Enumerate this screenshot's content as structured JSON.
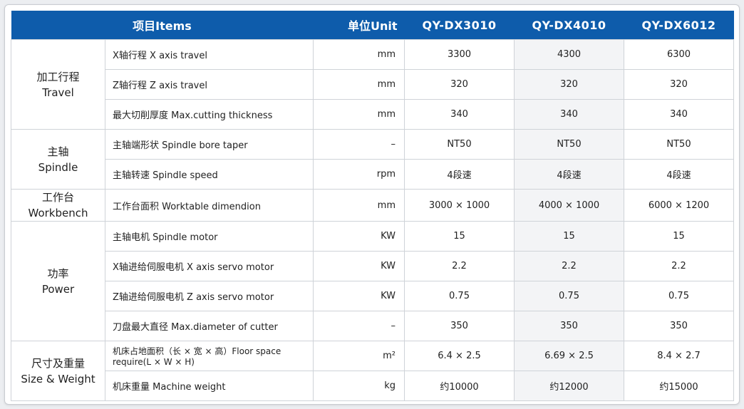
{
  "header": {
    "items": "项目Items",
    "unit": "单位Unit",
    "models": [
      "QY-DX3010",
      "QY-DX4010",
      "QY-DX6012"
    ]
  },
  "groups": [
    {
      "name_cn": "加工行程",
      "name_en": "Travel",
      "rows": [
        {
          "item": "X轴行程 X axis travel",
          "unit": "mm",
          "values": [
            "3300",
            "4300",
            "6300"
          ]
        },
        {
          "item": "Z轴行程 Z axis travel",
          "unit": "mm",
          "values": [
            "320",
            "320",
            "320"
          ]
        },
        {
          "item": "最大切削厚度 Max.cutting thickness",
          "unit": "mm",
          "values": [
            "340",
            "340",
            "340"
          ]
        }
      ]
    },
    {
      "name_cn": "主轴",
      "name_en": "Spindle",
      "rows": [
        {
          "item": "主轴端形状 Spindle bore taper",
          "unit": "–",
          "values": [
            "NT50",
            "NT50",
            "NT50"
          ]
        },
        {
          "item": "主轴转速 Spindle speed",
          "unit": "rpm",
          "values": [
            "4段速",
            "4段速",
            "4段速"
          ]
        }
      ]
    },
    {
      "name_cn": "工作台",
      "name_en": "Workbench",
      "rows": [
        {
          "item": "工作台面积 Worktable dimendion",
          "unit": "mm",
          "values": [
            "3000 × 1000",
            "4000 × 1000",
            "6000 × 1200"
          ]
        }
      ]
    },
    {
      "name_cn": "功率",
      "name_en": "Power",
      "rows": [
        {
          "item": "主轴电机 Spindle motor",
          "unit": "KW",
          "values": [
            "15",
            "15",
            "15"
          ]
        },
        {
          "item": "X轴进给伺服电机 X axis servo motor",
          "unit": "KW",
          "values": [
            "2.2",
            "2.2",
            "2.2"
          ]
        },
        {
          "item": "Z轴进给伺服电机 Z axis servo motor",
          "unit": "KW",
          "values": [
            "0.75",
            "0.75",
            "0.75"
          ]
        },
        {
          "item": "刀盘最大直径 Max.diameter of cutter",
          "unit": "–",
          "values": [
            "350",
            "350",
            "350"
          ]
        }
      ]
    },
    {
      "name_cn": "尺寸及重量",
      "name_en": "Size & Weight",
      "rows": [
        {
          "item": "机床占地面积（长 × 宽 × 高）Floor space require(L × W × H)",
          "unit": "m²",
          "values": [
            "6.4 × 2.5",
            "6.69 × 2.5",
            "8.4 × 2.7"
          ]
        },
        {
          "item": "机床重量 Machine weight",
          "unit": "kg",
          "values": [
            "约10000",
            "约12000",
            "约15000"
          ]
        }
      ]
    }
  ],
  "colors": {
    "header_bg": "#0e5cab",
    "header_text": "#ffffff",
    "grid": "#cfd3d8",
    "shaded_column": "#f3f4f6"
  }
}
